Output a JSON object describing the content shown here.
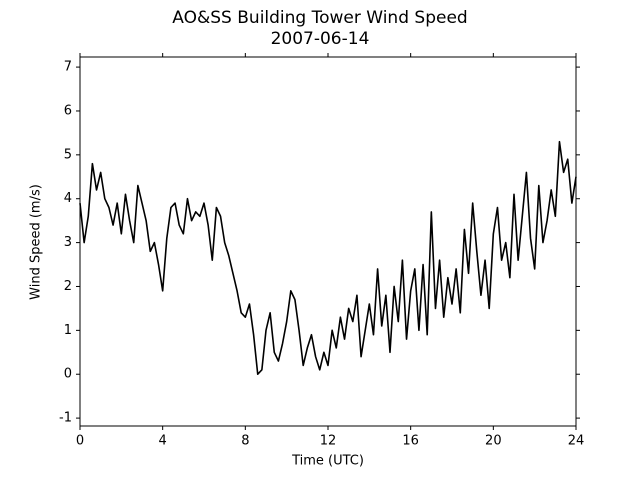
{
  "chart_data": {
    "type": "line",
    "title": "AO&SS Building Tower Wind Speed",
    "subtitle": "2007-06-14",
    "x_label": "Time (UTC)",
    "y_label": "Wind Speed (m/s)",
    "xlim": [
      0,
      24
    ],
    "xticks": [
      0,
      4,
      8,
      12,
      16,
      20,
      24
    ],
    "ylim": [
      -1.18,
      7.23
    ],
    "yticks": [
      -1,
      0,
      1,
      2,
      3,
      4,
      5,
      6,
      7
    ],
    "grid": false,
    "x": [
      0.0,
      0.2,
      0.4,
      0.6,
      0.8,
      1.0,
      1.2,
      1.4,
      1.6,
      1.8,
      2.0,
      2.2,
      2.4,
      2.6,
      2.8,
      3.0,
      3.2,
      3.4,
      3.6,
      3.8,
      4.0,
      4.2,
      4.4,
      4.6,
      4.8,
      5.0,
      5.2,
      5.4,
      5.6,
      5.8,
      6.0,
      6.2,
      6.4,
      6.6,
      6.8,
      7.0,
      7.2,
      7.4,
      7.6,
      7.8,
      8.0,
      8.2,
      8.4,
      8.6,
      8.8,
      9.0,
      9.2,
      9.4,
      9.6,
      9.8,
      10.0,
      10.2,
      10.4,
      10.6,
      10.8,
      11.0,
      11.2,
      11.4,
      11.6,
      11.8,
      12.0,
      12.2,
      12.4,
      12.6,
      12.8,
      13.0,
      13.2,
      13.4,
      13.6,
      13.8,
      14.0,
      14.2,
      14.4,
      14.6,
      14.8,
      15.0,
      15.2,
      15.4,
      15.6,
      15.8,
      16.0,
      16.2,
      16.4,
      16.6,
      16.8,
      17.0,
      17.2,
      17.4,
      17.6,
      17.8,
      18.0,
      18.2,
      18.4,
      18.6,
      18.8,
      19.0,
      19.2,
      19.4,
      19.6,
      19.8,
      20.0,
      20.2,
      20.4,
      20.6,
      20.8,
      21.0,
      21.2,
      21.4,
      21.6,
      21.8,
      22.0,
      22.2,
      22.4,
      22.6,
      22.8,
      23.0,
      23.2,
      23.4,
      23.6,
      23.8,
      24.0
    ],
    "series": [
      {
        "color": "#000000",
        "values": [
          3.9,
          3.0,
          3.6,
          4.8,
          4.2,
          4.6,
          4.0,
          3.8,
          3.4,
          3.9,
          3.2,
          4.1,
          3.5,
          3.0,
          4.3,
          3.9,
          3.5,
          2.8,
          3.0,
          2.5,
          1.9,
          3.1,
          3.8,
          3.9,
          3.4,
          3.2,
          4.0,
          3.5,
          3.7,
          3.6,
          3.9,
          3.4,
          2.6,
          3.8,
          3.6,
          3.0,
          2.7,
          2.3,
          1.9,
          1.4,
          1.3,
          1.6,
          0.9,
          0.0,
          0.1,
          1.0,
          1.4,
          0.5,
          0.3,
          0.7,
          1.2,
          1.9,
          1.7,
          1.0,
          0.2,
          0.6,
          0.9,
          0.4,
          0.1,
          0.5,
          0.2,
          1.0,
          0.6,
          1.3,
          0.8,
          1.5,
          1.2,
          1.8,
          0.4,
          1.0,
          1.6,
          0.9,
          2.4,
          1.1,
          1.8,
          0.5,
          2.0,
          1.2,
          2.6,
          0.8,
          1.9,
          2.4,
          1.0,
          2.5,
          0.9,
          3.7,
          1.5,
          2.6,
          1.3,
          2.2,
          1.6,
          2.4,
          1.4,
          3.3,
          2.3,
          3.9,
          2.8,
          1.8,
          2.6,
          1.5,
          3.2,
          3.8,
          2.6,
          3.0,
          2.2,
          4.1,
          2.6,
          3.6,
          4.6,
          3.1,
          2.4,
          4.3,
          3.0,
          3.5,
          4.2,
          3.6,
          5.3,
          4.6,
          4.9,
          3.9,
          4.5
        ]
      }
    ]
  }
}
